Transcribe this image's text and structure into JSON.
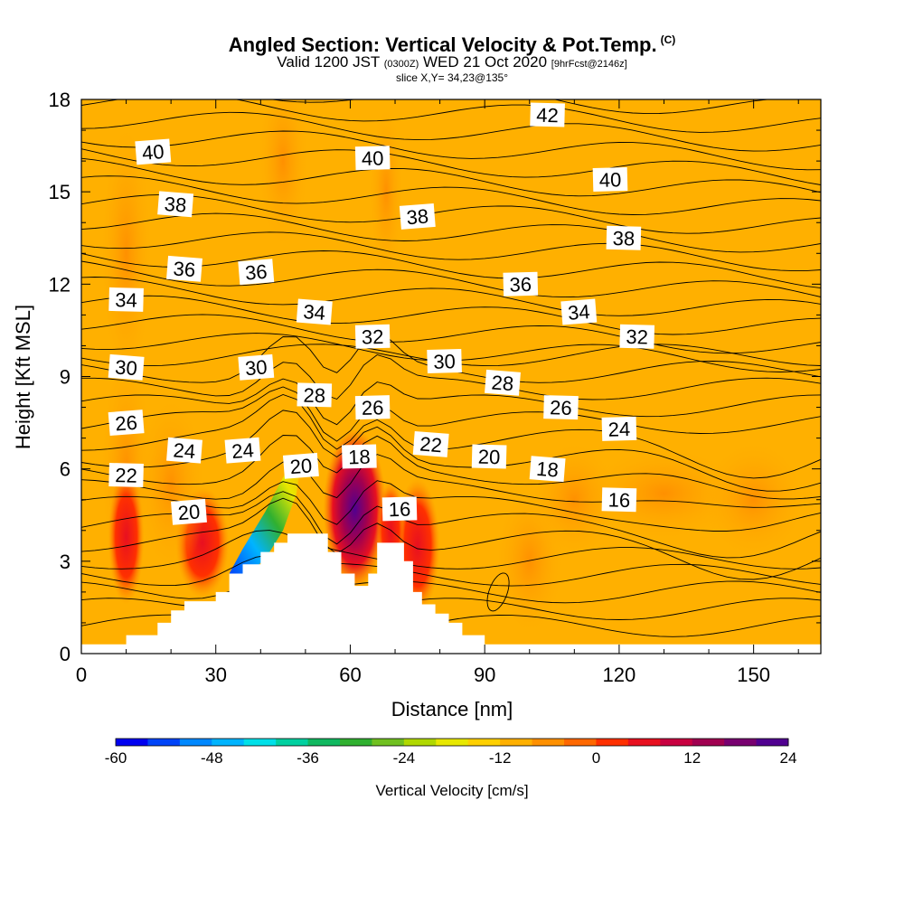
{
  "title": {
    "main": "Angled Section: Vertical Velocity & Pot.Temp.",
    "copyright": "(C)",
    "valid_prefix": "Valid 1200 JST",
    "zulu": "(0300Z)",
    "valid_date": "WED 21 Oct 2020",
    "forecast": "[9hrFcst@2146z]",
    "slice": "slice X,Y= 34,23@135°"
  },
  "colorbar": {
    "label": "Vertical Velocity [cm/s]",
    "tick_labels": [
      "-60",
      "-48",
      "-36",
      "-24",
      "-12",
      "0",
      "12",
      "24"
    ],
    "colors": [
      "#0000f0",
      "#0044f8",
      "#0088ff",
      "#00b4ff",
      "#00e0e8",
      "#00d0a0",
      "#10b860",
      "#30b030",
      "#70c020",
      "#b0d800",
      "#e8e800",
      "#ffd000",
      "#ffb000",
      "#ff9000",
      "#ff6800",
      "#ff3000",
      "#e81020",
      "#c80040",
      "#a00050",
      "#780070",
      "#500090"
    ]
  },
  "chart_data": {
    "type": "heatmap",
    "description_fields": "filled vertical velocity with potential temperature contour labels",
    "xlabel": "Distance [nm]",
    "ylabel": "Height [Kft MSL]",
    "xlim": [
      0,
      165
    ],
    "ylim": [
      0,
      18
    ],
    "x_ticks": [
      "0",
      "30",
      "60",
      "90",
      "120",
      "150"
    ],
    "y_ticks": [
      "0",
      "3",
      "6",
      "9",
      "12",
      "15",
      "18"
    ],
    "terrain_profile": [
      [
        0,
        0.3
      ],
      [
        10,
        0.6
      ],
      [
        14,
        0.6
      ],
      [
        17,
        1.0
      ],
      [
        20,
        1.4
      ],
      [
        23,
        1.7
      ],
      [
        27,
        1.7
      ],
      [
        30,
        2.0
      ],
      [
        33,
        2.6
      ],
      [
        36,
        2.9
      ],
      [
        40,
        3.3
      ],
      [
        43,
        3.6
      ],
      [
        46,
        3.9
      ],
      [
        52,
        3.9
      ],
      [
        55,
        3.3
      ],
      [
        58,
        2.6
      ],
      [
        61,
        2.2
      ],
      [
        64,
        2.6
      ],
      [
        66,
        3.6
      ],
      [
        71,
        3.6
      ],
      [
        72,
        3.0
      ],
      [
        74,
        2.0
      ],
      [
        76,
        1.6
      ],
      [
        79,
        1.3
      ],
      [
        82,
        1.0
      ],
      [
        85,
        0.6
      ],
      [
        90,
        0.3
      ],
      [
        165,
        0.3
      ]
    ],
    "theta_contour_labels": [
      {
        "label": "40",
        "x": 16,
        "y": 16.3
      },
      {
        "label": "40",
        "x": 65,
        "y": 16.1
      },
      {
        "label": "42",
        "x": 104,
        "y": 17.5
      },
      {
        "label": "38",
        "x": 21,
        "y": 14.6
      },
      {
        "label": "38",
        "x": 75,
        "y": 14.2
      },
      {
        "label": "40",
        "x": 118,
        "y": 15.4
      },
      {
        "label": "38",
        "x": 121,
        "y": 13.5
      },
      {
        "label": "36",
        "x": 23,
        "y": 12.5
      },
      {
        "label": "36",
        "x": 39,
        "y": 12.4
      },
      {
        "label": "36",
        "x": 98,
        "y": 12.0
      },
      {
        "label": "34",
        "x": 10,
        "y": 11.5
      },
      {
        "label": "34",
        "x": 52,
        "y": 11.1
      },
      {
        "label": "34",
        "x": 111,
        "y": 11.1
      },
      {
        "label": "32",
        "x": 65,
        "y": 10.3
      },
      {
        "label": "32",
        "x": 124,
        "y": 10.3
      },
      {
        "label": "30",
        "x": 10,
        "y": 9.3
      },
      {
        "label": "30",
        "x": 39,
        "y": 9.3
      },
      {
        "label": "30",
        "x": 81,
        "y": 9.5
      },
      {
        "label": "28",
        "x": 52,
        "y": 8.4
      },
      {
        "label": "28",
        "x": 94,
        "y": 8.8
      },
      {
        "label": "26",
        "x": 10,
        "y": 7.5
      },
      {
        "label": "26",
        "x": 65,
        "y": 8.0
      },
      {
        "label": "26",
        "x": 107,
        "y": 8.0
      },
      {
        "label": "24",
        "x": 23,
        "y": 6.6
      },
      {
        "label": "24",
        "x": 36,
        "y": 6.6
      },
      {
        "label": "24",
        "x": 120,
        "y": 7.3
      },
      {
        "label": "22",
        "x": 10,
        "y": 5.8
      },
      {
        "label": "22",
        "x": 78,
        "y": 6.8
      },
      {
        "label": "20",
        "x": 49,
        "y": 6.1
      },
      {
        "label": "18",
        "x": 62,
        "y": 6.4
      },
      {
        "label": "20",
        "x": 91,
        "y": 6.4
      },
      {
        "label": "18",
        "x": 104,
        "y": 6.0
      },
      {
        "label": "20",
        "x": 24,
        "y": 4.6
      },
      {
        "label": "16",
        "x": 71,
        "y": 4.7
      },
      {
        "label": "16",
        "x": 120,
        "y": 5.0
      }
    ]
  }
}
